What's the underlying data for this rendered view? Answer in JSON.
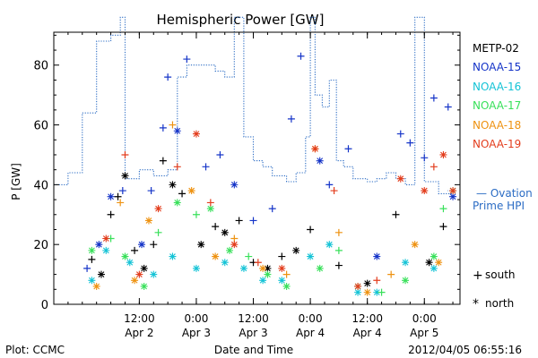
{
  "chart_data": {
    "type": "scatter",
    "title": "Hemispheric Power [GW]",
    "xlabel": "Date and Time",
    "ylabel": "P [GW]",
    "xlim": [
      "2012-04-01 18:00",
      "2012-04-05 07:30"
    ],
    "ylim": [
      0,
      91
    ],
    "x_ticks": [
      {
        "t": "2012-04-02 12:00",
        "label": "12:00",
        "sub": "Apr 2"
      },
      {
        "t": "2012-04-03 00:00",
        "label": "0:00",
        "sub": "Apr 3"
      },
      {
        "t": "2012-04-03 12:00",
        "label": "12:00",
        "sub": "Apr 3"
      },
      {
        "t": "2012-04-04 00:00",
        "label": "0:00",
        "sub": "Apr 4"
      },
      {
        "t": "2012-04-04 12:00",
        "label": "12:00",
        "sub": "Apr 4"
      },
      {
        "t": "2012-04-05 00:00",
        "label": "0:00",
        "sub": "Apr 5"
      }
    ],
    "y_ticks": [
      0,
      20,
      40,
      60,
      80
    ],
    "footer_left": "Plot: CCMC",
    "footer_right": "2012/04/05 06:55:16",
    "legend": {
      "placement": "right",
      "marker_south_symbol": "+",
      "marker_south_label": "south",
      "marker_north_symbol": "*",
      "marker_north_label": "north",
      "ovation_label": "— Ovation",
      "ovation_label2": "Prime HPI",
      "ovation_color": "#2b6cc4"
    },
    "ovation_hpi": {
      "name": "Ovation Prime HPI",
      "style": "dotted-step",
      "color": "#2b6cc4",
      "points": [
        [
          "2012-04-01 18:00",
          40
        ],
        [
          "2012-04-01 21:00",
          44
        ],
        [
          "2012-04-02 00:00",
          64
        ],
        [
          "2012-04-02 03:00",
          88
        ],
        [
          "2012-04-02 06:00",
          90
        ],
        [
          "2012-04-02 08:00",
          96
        ],
        [
          "2012-04-02 09:00",
          42
        ],
        [
          "2012-04-02 12:00",
          45
        ],
        [
          "2012-04-02 15:00",
          43
        ],
        [
          "2012-04-02 18:00",
          45
        ],
        [
          "2012-04-02 20:00",
          76
        ],
        [
          "2012-04-02 22:00",
          80
        ],
        [
          "2012-04-03 01:00",
          80
        ],
        [
          "2012-04-03 04:00",
          78
        ],
        [
          "2012-04-03 06:00",
          76
        ],
        [
          "2012-04-03 08:00",
          96
        ],
        [
          "2012-04-03 10:00",
          56
        ],
        [
          "2012-04-03 12:00",
          48
        ],
        [
          "2012-04-03 14:00",
          46
        ],
        [
          "2012-04-03 16:00",
          43
        ],
        [
          "2012-04-03 19:00",
          41
        ],
        [
          "2012-04-03 21:00",
          44
        ],
        [
          "2012-04-03 23:00",
          56
        ],
        [
          "2012-04-04 00:00",
          96
        ],
        [
          "2012-04-04 01:00",
          70
        ],
        [
          "2012-04-04 02:30",
          66
        ],
        [
          "2012-04-04 04:00",
          75
        ],
        [
          "2012-04-04 05:30",
          48
        ],
        [
          "2012-04-04 07:00",
          46
        ],
        [
          "2012-04-04 09:00",
          42
        ],
        [
          "2012-04-04 12:00",
          41
        ],
        [
          "2012-04-04 14:00",
          42
        ],
        [
          "2012-04-04 16:00",
          44
        ],
        [
          "2012-04-04 18:00",
          42
        ],
        [
          "2012-04-04 20:00",
          40
        ],
        [
          "2012-04-04 22:00",
          96
        ],
        [
          "2012-04-05 00:00",
          41
        ],
        [
          "2012-04-05 03:00",
          37
        ],
        [
          "2012-04-05 06:00",
          38
        ]
      ]
    },
    "series": [
      {
        "name": "METP-02",
        "color": "#000000",
        "points": [
          [
            "2012-04-02 02:00",
            15,
            "+"
          ],
          [
            "2012-04-02 04:00",
            10,
            "*"
          ],
          [
            "2012-04-02 06:00",
            30,
            "+"
          ],
          [
            "2012-04-02 07:30",
            36,
            "+"
          ],
          [
            "2012-04-02 09:00",
            43,
            "*"
          ],
          [
            "2012-04-02 11:00",
            18,
            "+"
          ],
          [
            "2012-04-02 13:00",
            12,
            "*"
          ],
          [
            "2012-04-02 15:00",
            20,
            "+"
          ],
          [
            "2012-04-02 17:00",
            48,
            "+"
          ],
          [
            "2012-04-02 19:00",
            40,
            "*"
          ],
          [
            "2012-04-02 21:00",
            37,
            "+"
          ],
          [
            "2012-04-03 01:00",
            20,
            "*"
          ],
          [
            "2012-04-03 04:00",
            26,
            "+"
          ],
          [
            "2012-04-03 06:00",
            24,
            "*"
          ],
          [
            "2012-04-03 09:00",
            28,
            "+"
          ],
          [
            "2012-04-03 12:00",
            14,
            "+"
          ],
          [
            "2012-04-03 15:00",
            12,
            "*"
          ],
          [
            "2012-04-03 18:00",
            16,
            "+"
          ],
          [
            "2012-04-03 21:00",
            18,
            "*"
          ],
          [
            "2012-04-04 00:00",
            25,
            "+"
          ],
          [
            "2012-04-04 06:00",
            13,
            "+"
          ],
          [
            "2012-04-04 12:00",
            7,
            "*"
          ],
          [
            "2012-04-04 18:00",
            30,
            "+"
          ],
          [
            "2012-04-05 01:00",
            14,
            "*"
          ],
          [
            "2012-04-05 04:00",
            26,
            "+"
          ]
        ]
      },
      {
        "name": "NOAA-15",
        "color": "#1534c8",
        "points": [
          [
            "2012-04-02 01:00",
            12,
            "+"
          ],
          [
            "2012-04-02 03:30",
            20,
            "*"
          ],
          [
            "2012-04-02 06:00",
            36,
            "*"
          ],
          [
            "2012-04-02 08:30",
            38,
            "+"
          ],
          [
            "2012-04-02 12:30",
            20,
            "*"
          ],
          [
            "2012-04-02 14:30",
            38,
            "+"
          ],
          [
            "2012-04-02 17:00",
            59,
            "+"
          ],
          [
            "2012-04-02 18:00",
            76,
            "+"
          ],
          [
            "2012-04-02 20:00",
            58,
            "*"
          ],
          [
            "2012-04-02 22:00",
            82,
            "+"
          ],
          [
            "2012-04-03 02:00",
            46,
            "+"
          ],
          [
            "2012-04-03 05:00",
            50,
            "+"
          ],
          [
            "2012-04-03 08:00",
            40,
            "*"
          ],
          [
            "2012-04-03 12:00",
            28,
            "+"
          ],
          [
            "2012-04-03 16:00",
            32,
            "+"
          ],
          [
            "2012-04-03 20:00",
            62,
            "+"
          ],
          [
            "2012-04-03 22:00",
            83,
            "+"
          ],
          [
            "2012-04-04 02:00",
            48,
            "*"
          ],
          [
            "2012-04-04 04:00",
            40,
            "+"
          ],
          [
            "2012-04-04 08:00",
            52,
            "+"
          ],
          [
            "2012-04-04 14:00",
            16,
            "*"
          ],
          [
            "2012-04-04 19:00",
            57,
            "+"
          ],
          [
            "2012-04-04 21:00",
            54,
            "+"
          ],
          [
            "2012-04-05 00:00",
            49,
            "+"
          ],
          [
            "2012-04-05 02:00",
            69,
            "+"
          ],
          [
            "2012-04-05 05:00",
            66,
            "+"
          ],
          [
            "2012-04-05 06:00",
            36,
            "*"
          ]
        ]
      },
      {
        "name": "NOAA-16",
        "color": "#14c3d6",
        "points": [
          [
            "2012-04-02 02:00",
            8,
            "*"
          ],
          [
            "2012-04-02 05:00",
            18,
            "*"
          ],
          [
            "2012-04-02 10:00",
            14,
            "*"
          ],
          [
            "2012-04-02 15:00",
            10,
            "*"
          ],
          [
            "2012-04-02 19:00",
            16,
            "*"
          ],
          [
            "2012-04-03 00:00",
            12,
            "*"
          ],
          [
            "2012-04-03 06:00",
            14,
            "*"
          ],
          [
            "2012-04-03 10:00",
            12,
            "*"
          ],
          [
            "2012-04-03 14:00",
            8,
            "*"
          ],
          [
            "2012-04-03 18:00",
            8,
            "*"
          ],
          [
            "2012-04-04 00:00",
            16,
            "*"
          ],
          [
            "2012-04-04 04:00",
            20,
            "*"
          ],
          [
            "2012-04-04 10:00",
            4,
            "*"
          ],
          [
            "2012-04-04 14:00",
            4,
            "*"
          ],
          [
            "2012-04-04 20:00",
            14,
            "*"
          ],
          [
            "2012-04-05 02:00",
            12,
            "*"
          ]
        ]
      },
      {
        "name": "NOAA-17",
        "color": "#38e05a",
        "points": [
          [
            "2012-04-02 02:00",
            18,
            "*"
          ],
          [
            "2012-04-02 06:00",
            22,
            "+"
          ],
          [
            "2012-04-02 09:00",
            16,
            "*"
          ],
          [
            "2012-04-02 13:00",
            6,
            "*"
          ],
          [
            "2012-04-02 16:00",
            24,
            "+"
          ],
          [
            "2012-04-02 20:00",
            34,
            "*"
          ],
          [
            "2012-04-03 00:00",
            30,
            "+"
          ],
          [
            "2012-04-03 03:00",
            32,
            "*"
          ],
          [
            "2012-04-03 07:00",
            18,
            "*"
          ],
          [
            "2012-04-03 11:00",
            16,
            "+"
          ],
          [
            "2012-04-03 15:00",
            10,
            "*"
          ],
          [
            "2012-04-03 19:00",
            6,
            "*"
          ],
          [
            "2012-04-04 02:00",
            12,
            "*"
          ],
          [
            "2012-04-04 06:00",
            18,
            "+"
          ],
          [
            "2012-04-04 10:00",
            6,
            "*"
          ],
          [
            "2012-04-04 15:00",
            4,
            "+"
          ],
          [
            "2012-04-04 20:00",
            8,
            "*"
          ],
          [
            "2012-04-05 02:00",
            16,
            "*"
          ],
          [
            "2012-04-05 04:00",
            32,
            "+"
          ],
          [
            "2012-04-05 06:00",
            38,
            "*"
          ]
        ]
      },
      {
        "name": "NOAA-18",
        "color": "#ee9211",
        "points": [
          [
            "2012-04-02 03:00",
            6,
            "*"
          ],
          [
            "2012-04-02 08:00",
            34,
            "+"
          ],
          [
            "2012-04-02 11:00",
            8,
            "*"
          ],
          [
            "2012-04-02 14:00",
            28,
            "*"
          ],
          [
            "2012-04-02 19:00",
            60,
            "+"
          ],
          [
            "2012-04-02 23:00",
            38,
            "*"
          ],
          [
            "2012-04-03 04:00",
            16,
            "*"
          ],
          [
            "2012-04-03 08:00",
            22,
            "+"
          ],
          [
            "2012-04-03 14:00",
            12,
            "*"
          ],
          [
            "2012-04-03 19:00",
            10,
            "+"
          ],
          [
            "2012-04-04 01:00",
            52,
            "*"
          ],
          [
            "2012-04-04 06:00",
            24,
            "+"
          ],
          [
            "2012-04-04 12:00",
            4,
            "*"
          ],
          [
            "2012-04-04 17:00",
            10,
            "+"
          ],
          [
            "2012-04-04 22:00",
            20,
            "*"
          ],
          [
            "2012-04-05 03:00",
            14,
            "*"
          ]
        ]
      },
      {
        "name": "NOAA-19",
        "color": "#e33d1d",
        "points": [
          [
            "2012-04-02 05:00",
            22,
            "*"
          ],
          [
            "2012-04-02 09:00",
            50,
            "+"
          ],
          [
            "2012-04-02 12:00",
            10,
            "*"
          ],
          [
            "2012-04-02 16:00",
            32,
            "*"
          ],
          [
            "2012-04-02 20:00",
            46,
            "+"
          ],
          [
            "2012-04-03 00:00",
            57,
            "*"
          ],
          [
            "2012-04-03 03:00",
            34,
            "+"
          ],
          [
            "2012-04-03 08:00",
            20,
            "*"
          ],
          [
            "2012-04-03 13:00",
            14,
            "+"
          ],
          [
            "2012-04-03 18:00",
            12,
            "*"
          ],
          [
            "2012-04-04 01:00",
            52,
            "*"
          ],
          [
            "2012-04-04 05:00",
            38,
            "+"
          ],
          [
            "2012-04-04 10:00",
            6,
            "*"
          ],
          [
            "2012-04-04 14:00",
            8,
            "+"
          ],
          [
            "2012-04-04 19:00",
            42,
            "*"
          ],
          [
            "2012-04-05 00:00",
            38,
            "*"
          ],
          [
            "2012-04-05 02:00",
            46,
            "+"
          ],
          [
            "2012-04-05 04:00",
            50,
            "*"
          ],
          [
            "2012-04-05 06:00",
            38,
            "*"
          ]
        ]
      }
    ]
  }
}
